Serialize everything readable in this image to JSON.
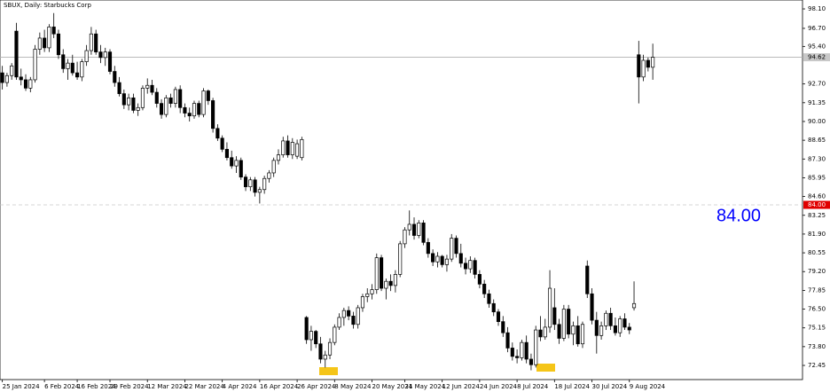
{
  "chart_data": {
    "type": "candlestick",
    "title": "SBUX, Daily:  Starbucks Corp",
    "xlim": [
      -0.5,
      171
    ],
    "ylim": [
      71.43,
      98.74
    ],
    "yticks": [
      {
        "value": 98.1,
        "label": "98.10"
      },
      {
        "value": 96.7,
        "label": "96.70"
      },
      {
        "value": 95.4,
        "label": "95.40"
      },
      {
        "value": 92.7,
        "label": "92.70"
      },
      {
        "value": 91.35,
        "label": "91.35"
      },
      {
        "value": 90,
        "label": "90.00"
      },
      {
        "value": 88.65,
        "label": "88.65"
      },
      {
        "value": 87.3,
        "label": "87.30"
      },
      {
        "value": 85.95,
        "label": "85.95"
      },
      {
        "value": 84.6,
        "label": "84.60"
      },
      {
        "value": 83.25,
        "label": "83.25"
      },
      {
        "value": 81.9,
        "label": "81.90"
      },
      {
        "value": 80.55,
        "label": "80.55"
      },
      {
        "value": 79.2,
        "label": "79.20"
      },
      {
        "value": 77.85,
        "label": "77.85"
      },
      {
        "value": 76.5,
        "label": "76.50"
      },
      {
        "value": 75.15,
        "label": "75.15"
      },
      {
        "value": 73.8,
        "label": "73.80"
      },
      {
        "value": 72.45,
        "label": "72.45"
      }
    ],
    "xticks": [
      {
        "value": 0,
        "label": "25 Jan 2024"
      },
      {
        "value": 9,
        "label": "6 Feb 2024"
      },
      {
        "value": 16,
        "label": "16 Feb 2024"
      },
      {
        "value": 23,
        "label": "29 Feb 2024"
      },
      {
        "value": 31,
        "label": "12 Mar 2024"
      },
      {
        "value": 39,
        "label": "22 Mar 2024"
      },
      {
        "value": 47,
        "label": "4 Apr 2024"
      },
      {
        "value": 55,
        "label": "16 Apr 2024"
      },
      {
        "value": 63,
        "label": "26 Apr 2024"
      },
      {
        "value": 71,
        "label": "8 May 2024"
      },
      {
        "value": 79,
        "label": "20 May 2024"
      },
      {
        "value": 86,
        "label": "31 May 2024"
      },
      {
        "value": 94,
        "label": "12 Jun 2024"
      },
      {
        "value": 102,
        "label": "24 Jun 2024"
      },
      {
        "value": 110,
        "label": "8 Jul 2024"
      },
      {
        "value": 118,
        "label": "18 Jul 2024"
      },
      {
        "value": 126,
        "label": "30 Jul 2024"
      },
      {
        "value": 134,
        "label": "9 Aug 2024"
      }
    ],
    "price_line": {
      "value": 94.62,
      "label": "94.62"
    },
    "level": {
      "value": 84,
      "label": "84.00"
    },
    "annotation": "84.00",
    "up_color": "#ffffff",
    "down_color": "#000000",
    "candles": [
      [
        93.5,
        94.0,
        92.3,
        92.8
      ],
      [
        92.8,
        93.5,
        92.5,
        93.3
      ],
      [
        93.3,
        94.2,
        93.0,
        94.0
      ],
      [
        96.5,
        97.1,
        93.0,
        93.2
      ],
      [
        93.2,
        93.8,
        92.6,
        93.0
      ],
      [
        93.0,
        93.4,
        92.2,
        92.4
      ],
      [
        92.4,
        93.2,
        92.1,
        93.0
      ],
      [
        93.0,
        95.5,
        92.8,
        95.2
      ],
      [
        95.2,
        96.4,
        94.8,
        96.0
      ],
      [
        96.0,
        96.6,
        95.0,
        95.3
      ],
      [
        95.3,
        97.0,
        95.0,
        96.8
      ],
      [
        96.8,
        97.8,
        96.0,
        96.3
      ],
      [
        96.3,
        96.6,
        94.5,
        94.8
      ],
      [
        94.8,
        95.2,
        93.5,
        93.8
      ],
      [
        93.8,
        94.5,
        93.0,
        94.2
      ],
      [
        94.2,
        94.8,
        93.3,
        93.5
      ],
      [
        93.5,
        94.3,
        93.0,
        93.2
      ],
      [
        93.2,
        94.5,
        92.9,
        94.3
      ],
      [
        94.3,
        95.5,
        94.0,
        95.1
      ],
      [
        95.1,
        96.8,
        94.8,
        96.3
      ],
      [
        96.3,
        96.6,
        94.8,
        95.0
      ],
      [
        95.0,
        95.5,
        94.2,
        94.6
      ],
      [
        94.6,
        95.3,
        94.0,
        95.0
      ],
      [
        95.0,
        95.2,
        93.4,
        93.6
      ],
      [
        93.6,
        94.0,
        92.5,
        92.8
      ],
      [
        92.8,
        93.2,
        91.8,
        92.0
      ],
      [
        92.0,
        92.3,
        90.9,
        91.2
      ],
      [
        91.2,
        92.0,
        90.8,
        91.7
      ],
      [
        91.7,
        92.0,
        90.6,
        90.8
      ],
      [
        90.8,
        91.3,
        90.4,
        91.0
      ],
      [
        91.0,
        92.6,
        90.8,
        92.4
      ],
      [
        92.4,
        93.1,
        92.0,
        92.6
      ],
      [
        92.6,
        93.0,
        91.9,
        92.1
      ],
      [
        92.1,
        92.4,
        91.0,
        91.3
      ],
      [
        91.3,
        91.6,
        90.2,
        90.5
      ],
      [
        90.5,
        91.9,
        90.3,
        91.7
      ],
      [
        91.7,
        92.0,
        91.0,
        91.3
      ],
      [
        91.3,
        92.5,
        91.0,
        92.3
      ],
      [
        92.3,
        92.6,
        90.6,
        91.0
      ],
      [
        91.0,
        91.3,
        90.3,
        90.6
      ],
      [
        90.6,
        91.0,
        90.0,
        90.4
      ],
      [
        90.4,
        91.5,
        90.2,
        91.3
      ],
      [
        91.3,
        91.5,
        90.3,
        90.5
      ],
      [
        90.5,
        92.4,
        90.3,
        92.2
      ],
      [
        92.2,
        92.3,
        91.2,
        91.5
      ],
      [
        91.5,
        91.7,
        89.2,
        89.5
      ],
      [
        89.5,
        89.8,
        88.6,
        88.8
      ],
      [
        88.8,
        89.0,
        87.8,
        88.0
      ],
      [
        88.0,
        88.5,
        87.2,
        87.4
      ],
      [
        87.4,
        87.9,
        86.6,
        86.8
      ],
      [
        86.8,
        87.5,
        86.3,
        87.2
      ],
      [
        87.2,
        87.4,
        85.8,
        86.0
      ],
      [
        86.0,
        86.2,
        85.0,
        85.3
      ],
      [
        85.3,
        86.0,
        85.0,
        85.8
      ],
      [
        85.8,
        86.0,
        84.6,
        84.9
      ],
      [
        84.9,
        85.3,
        84.1,
        85.1
      ],
      [
        85.1,
        86.1,
        84.8,
        85.9
      ],
      [
        85.9,
        86.5,
        85.6,
        86.3
      ],
      [
        86.3,
        87.4,
        86.0,
        87.2
      ],
      [
        87.2,
        88.0,
        86.9,
        87.6
      ],
      [
        87.6,
        88.9,
        87.4,
        88.6
      ],
      [
        88.6,
        89.0,
        87.4,
        87.6
      ],
      [
        87.6,
        88.8,
        87.3,
        88.5
      ],
      [
        87.5,
        88.7,
        87.3,
        88.4
      ],
      [
        87.4,
        88.9,
        87.2,
        88.7
      ],
      [
        75.9,
        76.0,
        74.0,
        74.3
      ],
      [
        74.3,
        75.3,
        73.5,
        74.9
      ],
      [
        74.9,
        75.0,
        73.7,
        74.0
      ],
      [
        74.0,
        74.5,
        72.6,
        72.9
      ],
      [
        72.9,
        73.5,
        72.3,
        73.2
      ],
      [
        73.2,
        74.4,
        72.9,
        74.1
      ],
      [
        74.1,
        75.4,
        73.9,
        75.2
      ],
      [
        75.2,
        76.2,
        75.0,
        75.9
      ],
      [
        75.9,
        76.6,
        75.3,
        76.4
      ],
      [
        76.4,
        76.7,
        75.7,
        76.0
      ],
      [
        76.0,
        76.3,
        75.1,
        75.4
      ],
      [
        75.4,
        76.8,
        75.1,
        76.6
      ],
      [
        76.6,
        77.6,
        76.3,
        77.4
      ],
      [
        77.4,
        78.0,
        77.0,
        77.6
      ],
      [
        77.6,
        78.3,
        77.2,
        77.9
      ],
      [
        77.9,
        80.5,
        77.6,
        80.2
      ],
      [
        80.2,
        80.4,
        77.8,
        78.0
      ],
      [
        78.0,
        78.7,
        77.2,
        78.5
      ],
      [
        78.5,
        79.0,
        77.8,
        78.2
      ],
      [
        78.2,
        79.3,
        77.7,
        79.0
      ],
      [
        79.0,
        81.4,
        78.8,
        81.2
      ],
      [
        81.2,
        82.4,
        80.9,
        82.2
      ],
      [
        82.2,
        83.6,
        81.8,
        82.6
      ],
      [
        82.6,
        83.1,
        81.5,
        81.8
      ],
      [
        81.8,
        82.9,
        81.6,
        82.7
      ],
      [
        82.7,
        82.9,
        81.1,
        81.3
      ],
      [
        81.3,
        81.6,
        80.2,
        80.5
      ],
      [
        80.5,
        80.8,
        79.6,
        79.9
      ],
      [
        79.9,
        80.6,
        79.5,
        80.3
      ],
      [
        80.3,
        80.4,
        79.5,
        79.7
      ],
      [
        79.7,
        80.4,
        79.2,
        80.1
      ],
      [
        80.1,
        81.9,
        79.9,
        81.6
      ],
      [
        81.6,
        81.8,
        80.2,
        80.5
      ],
      [
        80.5,
        81.2,
        79.5,
        79.8
      ],
      [
        79.8,
        80.2,
        79.0,
        79.4
      ],
      [
        79.4,
        80.3,
        79.1,
        80.0
      ],
      [
        80.0,
        80.2,
        78.7,
        79.0
      ],
      [
        79.0,
        79.3,
        78.0,
        78.3
      ],
      [
        78.3,
        78.6,
        77.3,
        77.6
      ],
      [
        77.6,
        77.9,
        76.6,
        76.9
      ],
      [
        76.9,
        77.2,
        76.0,
        76.3
      ],
      [
        76.3,
        76.5,
        75.3,
        75.6
      ],
      [
        75.6,
        76.0,
        74.5,
        74.8
      ],
      [
        74.8,
        75.2,
        73.4,
        73.7
      ],
      [
        73.7,
        74.1,
        72.8,
        73.1
      ],
      [
        73.1,
        73.6,
        72.6,
        73.0
      ],
      [
        73.0,
        74.3,
        72.8,
        74.1
      ],
      [
        74.1,
        74.6,
        72.6,
        72.9
      ],
      [
        72.9,
        73.3,
        72.1,
        72.5
      ],
      [
        72.5,
        75.3,
        72.3,
        75.0
      ],
      [
        75.0,
        76.0,
        74.2,
        74.5
      ],
      [
        74.5,
        75.8,
        74.3,
        75.2
      ],
      [
        75.2,
        79.3,
        74.8,
        78.0
      ],
      [
        76.6,
        78.0,
        75.0,
        75.4
      ],
      [
        75.4,
        75.8,
        74.0,
        74.4
      ],
      [
        74.4,
        76.8,
        74.2,
        76.5
      ],
      [
        76.5,
        76.8,
        74.4,
        74.7
      ],
      [
        74.7,
        75.6,
        73.9,
        75.3
      ],
      [
        75.3,
        76.0,
        73.8,
        74.0
      ],
      [
        74.0,
        75.6,
        73.7,
        75.4
      ],
      [
        79.6,
        80.0,
        77.3,
        77.6
      ],
      [
        77.6,
        78.0,
        75.4,
        75.7
      ],
      [
        75.7,
        76.3,
        73.3,
        74.6
      ],
      [
        74.6,
        75.6,
        74.3,
        75.3
      ],
      [
        75.3,
        76.4,
        75.0,
        76.2
      ],
      [
        76.2,
        76.6,
        75.0,
        75.3
      ],
      [
        75.3,
        75.9,
        74.6,
        74.8
      ],
      [
        74.8,
        76.0,
        74.5,
        75.8
      ],
      [
        75.8,
        76.2,
        75.0,
        75.2
      ],
      [
        75.2,
        75.5,
        74.7,
        75.0
      ],
      [
        76.6,
        78.5,
        76.4,
        76.9
      ],
      [
        94.8,
        95.8,
        91.3,
        93.2
      ],
      [
        93.2,
        94.8,
        92.9,
        94.4
      ],
      [
        94.4,
        94.6,
        93.6,
        93.9
      ],
      [
        93.9,
        95.6,
        93.0,
        94.62
      ]
    ]
  }
}
